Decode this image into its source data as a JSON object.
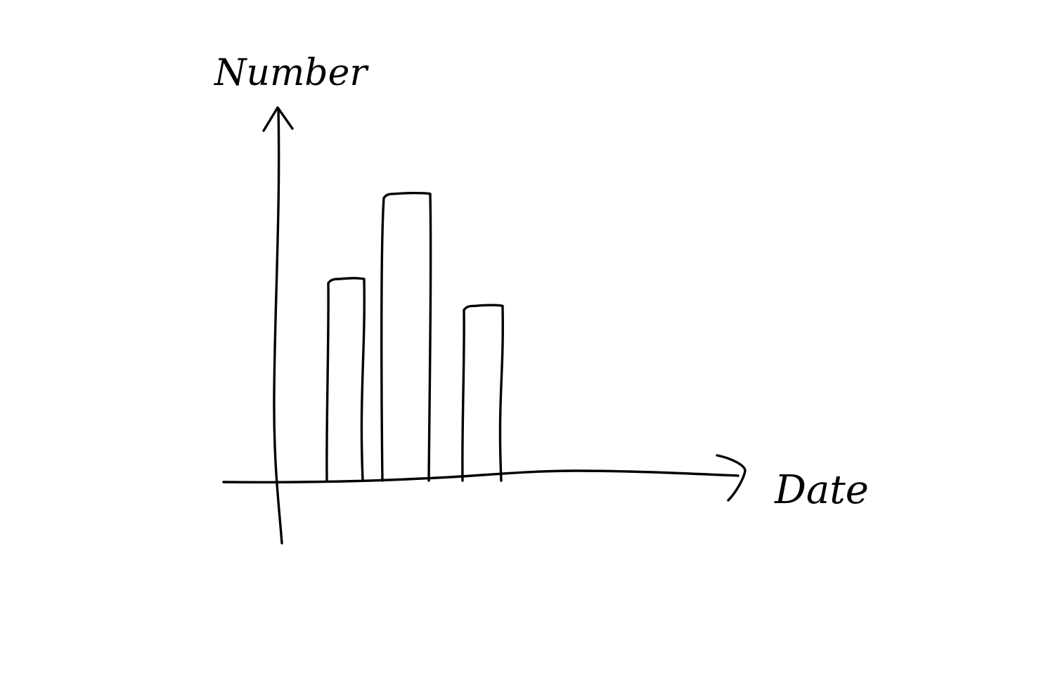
{
  "chart_data": {
    "type": "bar",
    "title": "",
    "xlabel": "Date",
    "ylabel": "Number",
    "categories": [
      "",
      "",
      ""
    ],
    "values": [
      4.5,
      6.4,
      3.9
    ],
    "ylim": [
      0,
      9
    ],
    "grid": false,
    "legend": "none",
    "colors": {
      "ink": "#000000",
      "background": "#ffffff"
    }
  }
}
